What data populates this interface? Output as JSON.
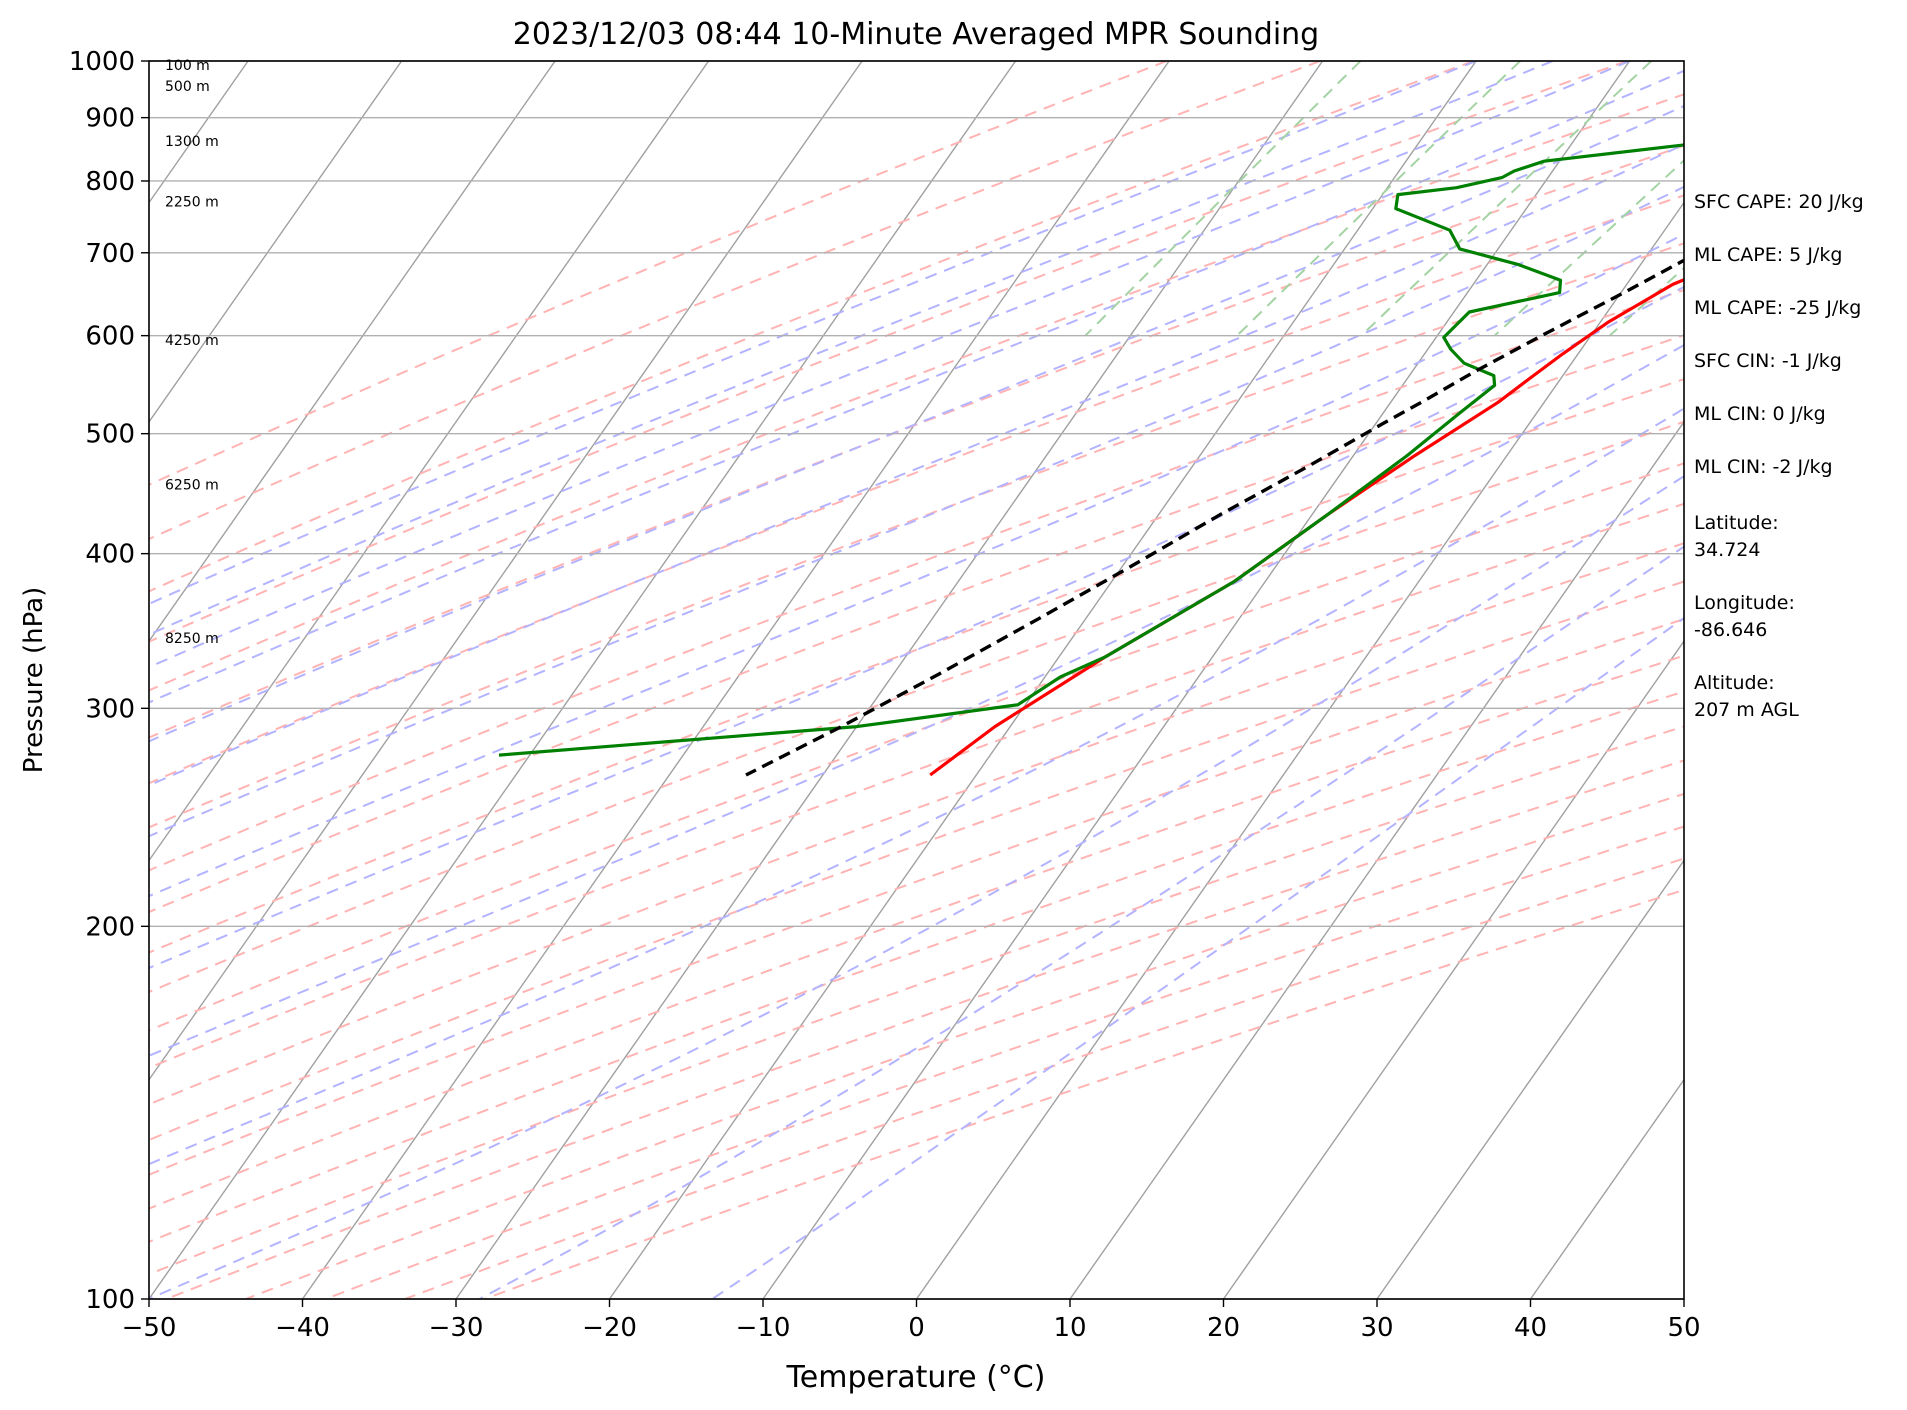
{
  "chart_data": {
    "type": "line",
    "title": "2023/12/03 08:44 10-Minute Averaged MPR Sounding",
    "xlabel": "Temperature (°C)",
    "ylabel": "Pressure (hPa)",
    "xlim": [
      -50,
      50
    ],
    "ylim": [
      1000,
      100
    ],
    "y_scale": "log",
    "skew": true,
    "grid": true,
    "x_ticks": [
      "−50",
      "−40",
      "−30",
      "−20",
      "−10",
      "0",
      "10",
      "20",
      "30",
      "40",
      "50"
    ],
    "y_ticks": [
      "100",
      "200",
      "300",
      "400",
      "500",
      "600",
      "700",
      "800",
      "900",
      "1000"
    ],
    "height_labels": [
      {
        "p": 993,
        "label": "100 m"
      },
      {
        "p": 955,
        "label": "500 m"
      },
      {
        "p": 862,
        "label": "1300 m"
      },
      {
        "p": 770,
        "label": "2250 m"
      },
      {
        "p": 595,
        "label": "4250 m"
      },
      {
        "p": 455,
        "label": "6250 m"
      },
      {
        "p": 342,
        "label": "8250 m"
      }
    ],
    "series": [
      {
        "key": "temperature",
        "color": "#ff0000",
        "points": [
          [
            15.0,
            995
          ],
          [
            14.0,
            975
          ],
          [
            12.5,
            950
          ],
          [
            12.5,
            930
          ],
          [
            13.0,
            900
          ],
          [
            13.5,
            860
          ],
          [
            13.5,
            840
          ],
          [
            13.0,
            815
          ],
          [
            12.5,
            790
          ],
          [
            11.5,
            765
          ],
          [
            8.0,
            718
          ],
          [
            3.0,
            660
          ],
          [
            0.5,
            615
          ],
          [
            -1.0,
            580
          ],
          [
            -2.0,
            555
          ],
          [
            -3.0,
            530
          ],
          [
            -6.0,
            480
          ],
          [
            -9.0,
            430
          ],
          [
            -12.0,
            380
          ],
          [
            -17.0,
            330
          ],
          [
            -21.0,
            290
          ],
          [
            -23.0,
            265
          ]
        ]
      },
      {
        "key": "dewpoint",
        "color": "#008000",
        "points": [
          [
            14.5,
            995
          ],
          [
            14.5,
            975
          ],
          [
            12.0,
            945
          ],
          [
            10.0,
            930
          ],
          [
            8.5,
            920
          ],
          [
            6.0,
            890
          ],
          [
            1.0,
            875
          ],
          [
            -0.5,
            862
          ],
          [
            -11.0,
            830
          ],
          [
            -12.5,
            815
          ],
          [
            -13.0,
            805
          ],
          [
            -15.5,
            790
          ],
          [
            -19.0,
            780
          ],
          [
            -18.5,
            760
          ],
          [
            -14.0,
            730
          ],
          [
            -12.5,
            705
          ],
          [
            -8.0,
            685
          ],
          [
            -4.5,
            665
          ],
          [
            -4.0,
            650
          ],
          [
            -9.0,
            627
          ],
          [
            -9.5,
            598
          ],
          [
            -8.5,
            585
          ],
          [
            -7.0,
            570
          ],
          [
            -4.5,
            557
          ],
          [
            -4.0,
            547
          ],
          [
            -5.0,
            520
          ],
          [
            -6.5,
            480
          ],
          [
            -9.0,
            430
          ],
          [
            -12.0,
            380
          ],
          [
            -17.0,
            330
          ],
          [
            -19.0,
            318
          ],
          [
            -20.5,
            302
          ],
          [
            -30.0,
            290
          ],
          [
            -52.0,
            275
          ]
        ]
      },
      {
        "key": "parcel",
        "color": "#000000",
        "dashed": true,
        "points": [
          [
            15.3,
            993
          ],
          [
            14.5,
            975
          ],
          [
            13.0,
            940
          ],
          [
            11.5,
            900
          ],
          [
            9.8,
            850
          ],
          [
            8.3,
            800
          ],
          [
            5.8,
            750
          ],
          [
            3.2,
            700
          ],
          [
            0.2,
            650
          ],
          [
            -3.2,
            600
          ],
          [
            -6.0,
            560
          ],
          [
            -8.0,
            530
          ],
          [
            -9.5,
            510
          ],
          [
            -12.5,
            470
          ],
          [
            -16.0,
            430
          ],
          [
            -19.5,
            390
          ],
          [
            -23.0,
            355
          ],
          [
            -27.0,
            320
          ],
          [
            -31.0,
            290
          ],
          [
            -35.0,
            265
          ]
        ]
      }
    ]
  },
  "annotations": [
    "SFC CAPE: 20 J/kg",
    "ML CAPE: 5 J/kg",
    "ML CAPE: -25 J/kg",
    "SFC CIN: -1 J/kg",
    "ML CIN: 0 J/kg",
    "ML CIN: -2 J/kg",
    "Latitude:\n34.724",
    "Longitude:\n-86.646",
    "Altitude:\n207 m AGL"
  ],
  "colors": {
    "temperature": "#ff0000",
    "dewpoint": "#008000",
    "parcel": "#000000",
    "isotherms": "#a0a0a0",
    "dry_adiabats": "#ffb3b3",
    "moist_adiabats": "#b3b3ff",
    "mixing_ratio": "#a3d3a3"
  }
}
